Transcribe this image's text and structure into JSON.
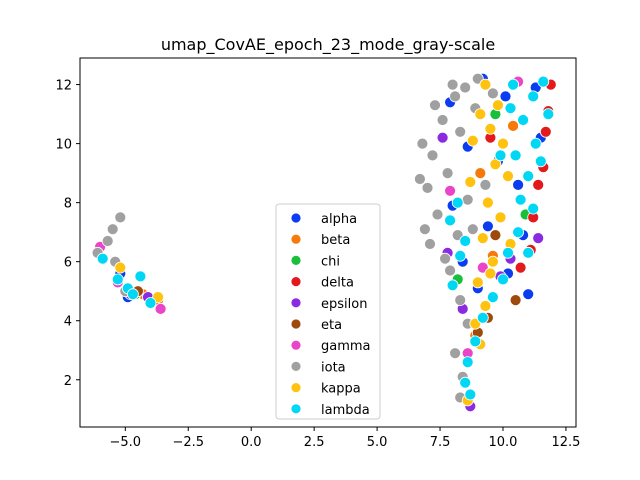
{
  "chart_data": {
    "type": "scatter",
    "title": "umap_CovAE_epoch_23_mode_gray-scale",
    "xlabel": "",
    "ylabel": "",
    "xlim": [
      -6.8,
      12.9
    ],
    "ylim": [
      0.4,
      12.9
    ],
    "xticks": [
      -5.0,
      -2.5,
      0.0,
      2.5,
      5.0,
      7.5,
      10.0,
      12.5
    ],
    "xtick_labels": [
      "−5.0",
      "−2.5",
      "0.0",
      "2.5",
      "5.0",
      "7.5",
      "10.0",
      "12.5"
    ],
    "yticks": [
      2,
      4,
      6,
      8,
      10,
      12
    ],
    "ytick_labels": [
      "2",
      "4",
      "6",
      "8",
      "10",
      "12"
    ],
    "grid": false,
    "legend_position": "lower-center",
    "marker": "circle-white-edge",
    "series": [
      {
        "name": "alpha",
        "color": "#0b3df0",
        "points": [
          [
            9.2,
            12.2
          ],
          [
            10.1,
            11.6
          ],
          [
            11.3,
            11.9
          ],
          [
            9.8,
            9.4
          ],
          [
            10.6,
            8.6
          ],
          [
            9.4,
            7.2
          ],
          [
            8.4,
            6.0
          ],
          [
            9.0,
            5.1
          ],
          [
            10.2,
            5.6
          ],
          [
            11.5,
            10.2
          ],
          [
            8.6,
            9.9
          ],
          [
            7.9,
            11.4
          ],
          [
            10.8,
            6.9
          ],
          [
            11.0,
            4.9
          ],
          [
            8.0,
            7.9
          ],
          [
            -5.2,
            5.6
          ],
          [
            -4.9,
            4.8
          ]
        ]
      },
      {
        "name": "beta",
        "color": "#f57a0b",
        "points": [
          [
            8.9,
            3.5
          ],
          [
            9.6,
            6.2
          ],
          [
            10.4,
            10.6
          ],
          [
            -3.7,
            4.7
          ],
          [
            -4.3,
            4.9
          ],
          [
            9.1,
            9.0
          ]
        ]
      },
      {
        "name": "chi",
        "color": "#17bf3a",
        "points": [
          [
            9.7,
            11.0
          ],
          [
            10.9,
            7.6
          ],
          [
            8.2,
            5.4
          ],
          [
            -4.6,
            4.9
          ]
        ]
      },
      {
        "name": "delta",
        "color": "#e31a1c",
        "points": [
          [
            11.7,
            10.4
          ],
          [
            11.9,
            12.0
          ],
          [
            11.4,
            8.6
          ],
          [
            11.2,
            7.5
          ],
          [
            11.6,
            9.2
          ],
          [
            10.7,
            5.8
          ],
          [
            9.5,
            10.2
          ],
          [
            11.8,
            11.1
          ],
          [
            11.1,
            6.4
          ]
        ]
      },
      {
        "name": "epsilon",
        "color": "#8a2be2",
        "points": [
          [
            7.8,
            6.3
          ],
          [
            8.4,
            4.4
          ],
          [
            10.3,
            6.1
          ],
          [
            8.7,
            1.1
          ],
          [
            9.9,
            5.5
          ],
          [
            7.6,
            10.2
          ],
          [
            11.4,
            6.8
          ],
          [
            -4.1,
            4.8
          ],
          [
            -4.8,
            4.9
          ]
        ]
      },
      {
        "name": "eta",
        "color": "#9e4a0c",
        "points": [
          [
            9.4,
            4.1
          ],
          [
            9.0,
            3.6
          ],
          [
            9.7,
            6.9
          ],
          [
            10.5,
            4.7
          ],
          [
            -4.5,
            5.0
          ]
        ]
      },
      {
        "name": "gamma",
        "color": "#ea45c8",
        "points": [
          [
            7.9,
            8.4
          ],
          [
            9.2,
            5.8
          ],
          [
            8.6,
            2.9
          ],
          [
            10.6,
            12.1
          ],
          [
            -3.6,
            4.4
          ],
          [
            -5.3,
            5.3
          ],
          [
            -6.0,
            6.5
          ]
        ]
      },
      {
        "name": "iota",
        "color": "#a0a0a0",
        "points": [
          [
            7.2,
            9.6
          ],
          [
            7.6,
            10.8
          ],
          [
            8.1,
            11.6
          ],
          [
            7.0,
            8.5
          ],
          [
            7.4,
            7.6
          ],
          [
            7.1,
            6.6
          ],
          [
            8.5,
            11.9
          ],
          [
            7.8,
            9.0
          ],
          [
            8.3,
            10.4
          ],
          [
            8.6,
            8.1
          ],
          [
            8.2,
            6.9
          ],
          [
            8.9,
            11.2
          ],
          [
            9.3,
            8.6
          ],
          [
            8.8,
            7.1
          ],
          [
            7.9,
            5.7
          ],
          [
            8.3,
            4.7
          ],
          [
            8.6,
            3.9
          ],
          [
            8.1,
            2.9
          ],
          [
            8.4,
            2.1
          ],
          [
            8.3,
            1.4
          ],
          [
            9.0,
            12.2
          ],
          [
            9.6,
            11.7
          ],
          [
            8.0,
            12.0
          ],
          [
            7.3,
            11.3
          ],
          [
            6.8,
            10.0
          ],
          [
            6.7,
            8.8
          ],
          [
            6.9,
            7.1
          ],
          [
            7.7,
            6.1
          ],
          [
            -6.1,
            6.3
          ],
          [
            -5.7,
            6.7
          ],
          [
            -5.5,
            7.1
          ],
          [
            -5.2,
            7.5
          ],
          [
            -5.4,
            6.0
          ],
          [
            -5.0,
            5.0
          ]
        ]
      },
      {
        "name": "kappa",
        "color": "#ffc20e",
        "points": [
          [
            9.3,
            12.0
          ],
          [
            9.8,
            11.3
          ],
          [
            9.5,
            10.5
          ],
          [
            9.7,
            9.3
          ],
          [
            9.4,
            8.0
          ],
          [
            9.9,
            7.5
          ],
          [
            9.2,
            6.8
          ],
          [
            9.6,
            6.0
          ],
          [
            9.0,
            5.3
          ],
          [
            9.3,
            4.5
          ],
          [
            8.9,
            3.9
          ],
          [
            9.1,
            3.2
          ],
          [
            8.6,
            1.3
          ],
          [
            10.2,
            8.9
          ],
          [
            9.1,
            11.0
          ],
          [
            8.8,
            10.1
          ],
          [
            10.0,
            10.0
          ],
          [
            10.3,
            6.6
          ],
          [
            9.5,
            5.6
          ],
          [
            8.7,
            8.7
          ],
          [
            -3.7,
            4.8
          ],
          [
            -5.2,
            5.8
          ]
        ]
      },
      {
        "name": "lambda",
        "color": "#00d7f5",
        "points": [
          [
            10.4,
            12.0
          ],
          [
            11.2,
            11.6
          ],
          [
            11.8,
            11.0
          ],
          [
            11.6,
            12.1
          ],
          [
            10.8,
            10.8
          ],
          [
            11.3,
            10.0
          ],
          [
            10.5,
            9.6
          ],
          [
            11.0,
            8.9
          ],
          [
            10.7,
            8.1
          ],
          [
            11.2,
            7.8
          ],
          [
            10.6,
            7.0
          ],
          [
            10.2,
            6.3
          ],
          [
            10.0,
            5.4
          ],
          [
            9.6,
            4.8
          ],
          [
            9.2,
            4.1
          ],
          [
            8.9,
            3.3
          ],
          [
            8.6,
            2.6
          ],
          [
            8.5,
            1.9
          ],
          [
            8.7,
            1.5
          ],
          [
            8.2,
            8.0
          ],
          [
            8.5,
            6.7
          ],
          [
            8.0,
            5.2
          ],
          [
            8.3,
            6.2
          ],
          [
            7.9,
            7.4
          ],
          [
            9.9,
            9.6
          ],
          [
            10.3,
            11.2
          ],
          [
            11.5,
            9.4
          ],
          [
            11.0,
            6.3
          ],
          [
            -5.9,
            6.1
          ],
          [
            -5.3,
            5.4
          ],
          [
            -4.9,
            5.1
          ],
          [
            -4.4,
            5.5
          ],
          [
            -4.0,
            4.6
          ],
          [
            -4.7,
            4.9
          ]
        ]
      }
    ]
  }
}
